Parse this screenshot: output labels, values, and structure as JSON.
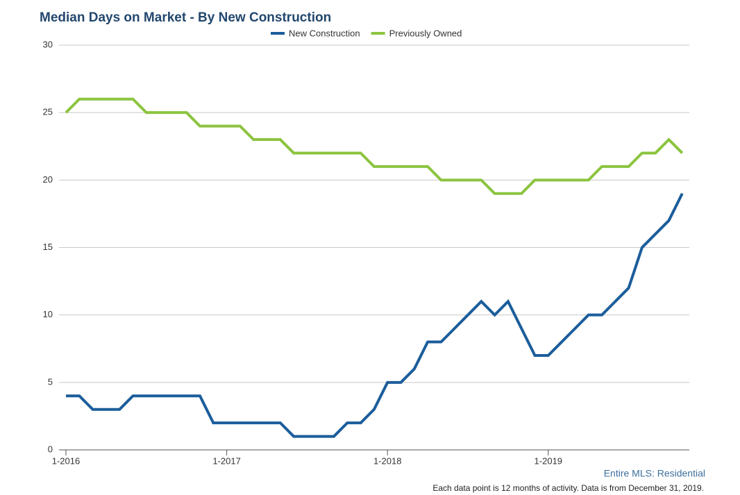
{
  "chart_data": {
    "type": "line",
    "title": "Median Days on Market - By New Construction",
    "categories": [
      "1-2016",
      null,
      null,
      null,
      null,
      null,
      null,
      null,
      null,
      null,
      null,
      null,
      "1-2017",
      null,
      null,
      null,
      null,
      null,
      null,
      null,
      null,
      null,
      null,
      null,
      "1-2018",
      null,
      null,
      null,
      null,
      null,
      null,
      null,
      null,
      null,
      null,
      null,
      "1-2019",
      null,
      null,
      null,
      null,
      null,
      null,
      null,
      null,
      null,
      null
    ],
    "series": [
      {
        "name": "New Construction",
        "color": "#1b5d9b",
        "values": [
          4,
          4,
          3,
          3,
          3,
          4,
          4,
          4,
          4,
          4,
          4,
          2,
          2,
          2,
          2,
          2,
          2,
          1,
          1,
          1,
          1,
          2,
          2,
          3,
          5,
          5,
          6,
          8,
          8,
          9,
          10,
          11,
          10,
          11,
          9,
          7,
          7,
          8,
          9,
          10,
          10,
          11,
          12,
          15,
          16,
          17,
          19
        ]
      },
      {
        "name": "Previously Owned",
        "color": "#8cc440",
        "values": [
          25,
          26,
          26,
          26,
          26,
          26,
          25,
          25,
          25,
          25,
          24,
          24,
          24,
          24,
          23,
          23,
          23,
          22,
          22,
          22,
          22,
          22,
          22,
          21,
          21,
          21,
          21,
          21,
          20,
          20,
          20,
          20,
          19,
          19,
          19,
          20,
          20,
          20,
          20,
          20,
          21,
          21,
          21,
          22,
          22,
          23,
          22
        ]
      }
    ],
    "ylim": [
      0,
      30
    ],
    "yticks": [
      0,
      5,
      10,
      15,
      20,
      25,
      30
    ],
    "grid": true,
    "legend": "top",
    "source": "Entire MLS: Residential",
    "note": "Each data point is 12 months of activity. Data is from December 31, 2019."
  }
}
